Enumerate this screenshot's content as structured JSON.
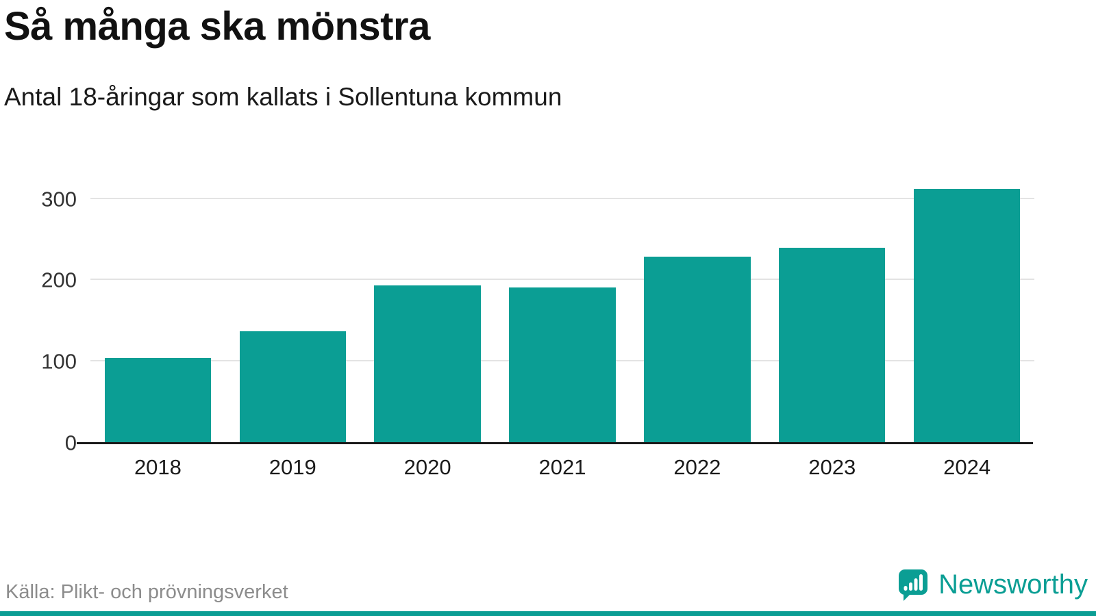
{
  "header": {
    "title": "Så många ska mönstra",
    "subtitle": "Antal 18-åringar som kallats i Sollentuna kommun"
  },
  "chart_data": {
    "type": "bar",
    "title": "Så många ska mönstra",
    "subtitle": "Antal 18-åringar som kallats i Sollentuna kommun",
    "categories": [
      "2018",
      "2019",
      "2020",
      "2021",
      "2022",
      "2023",
      "2024"
    ],
    "values": [
      104,
      137,
      194,
      191,
      229,
      240,
      312
    ],
    "xlabel": "",
    "ylabel": "",
    "ylim": [
      0,
      330
    ],
    "yticks": [
      0,
      100,
      200,
      300
    ],
    "grid": true,
    "legend_position": "none",
    "bar_color": "#0b9e94",
    "gridline_color": "#e3e3e3",
    "axis_color": "#1a1a1a"
  },
  "footer": {
    "source": "Källa: Plikt- och prövningsverket",
    "brand_name": "Newsworthy",
    "logo_icon": "bar-chart-speech-bubble-icon",
    "accent_color": "#0b9e94"
  }
}
